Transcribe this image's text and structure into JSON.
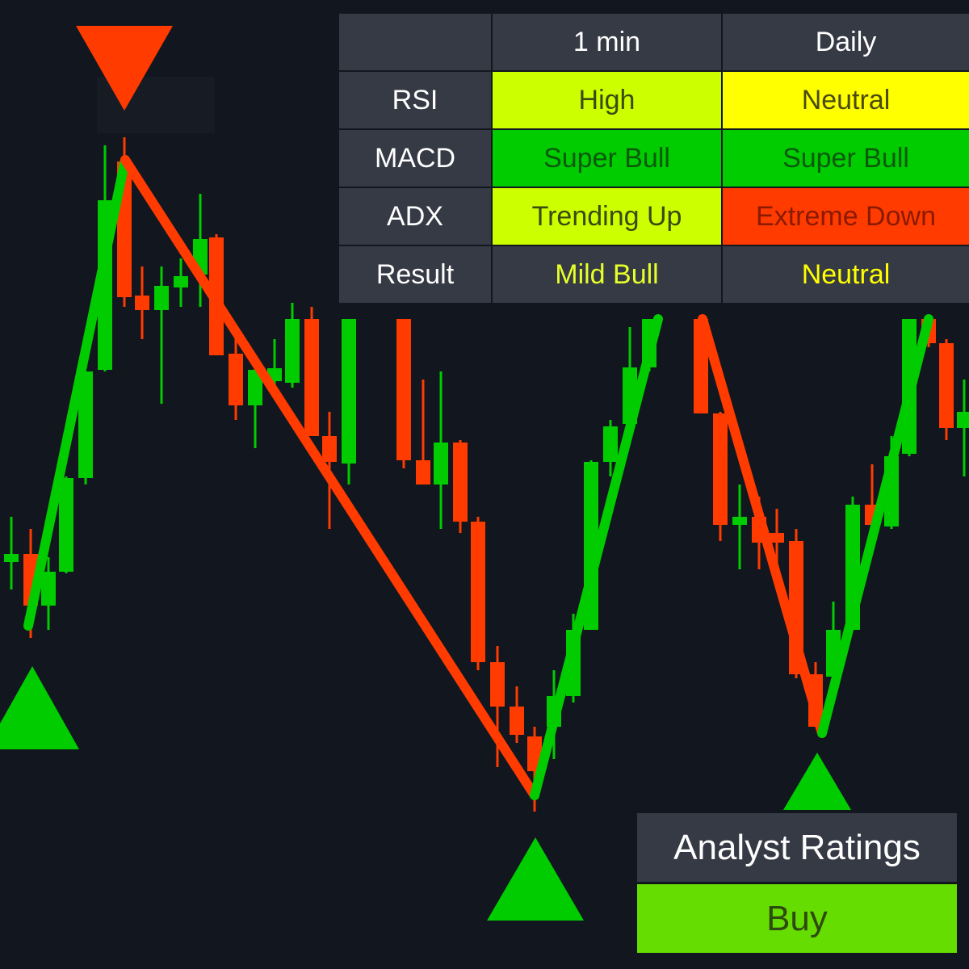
{
  "table": {
    "columns": [
      "1 min",
      "Daily"
    ],
    "rows": [
      {
        "label": "RSI",
        "values": [
          "High",
          "Neutral"
        ]
      },
      {
        "label": "MACD",
        "values": [
          "Super Bull",
          "Super Bull"
        ]
      },
      {
        "label": "ADX",
        "values": [
          "Trending Up",
          "Extreme Down"
        ]
      },
      {
        "label": "Result",
        "values": [
          "Mild Bull",
          "Neutral"
        ]
      }
    ]
  },
  "analyst_ratings": {
    "title": "Analyst Ratings",
    "rating": "Buy"
  }
}
